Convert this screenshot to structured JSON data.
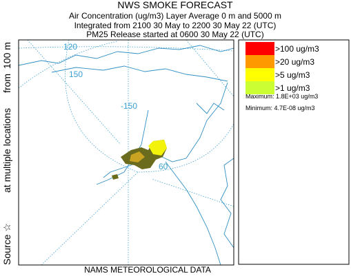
{
  "header": {
    "title": "NWS SMOKE FORECAST",
    "lines": [
      "Air Concentration (ug/m3) Layer Average    0 m and  5000 m",
      "Integrated from 2100 30 May to 2200 30 May 22 (UTC)",
      "PM25 Release started at 0600 30 May 22 (UTC)"
    ]
  },
  "side_label": [
    "Source ☆",
    "at multiple locations",
    "from",
    "100 m"
  ],
  "footer": "NAMS METEOROLOGICAL DATA",
  "map": {
    "labels": [
      "120",
      "150",
      "-150",
      "60"
    ]
  },
  "legend": {
    "entries": [
      {
        "label": ">100 ug/m3",
        "color": "#ff0000"
      },
      {
        "label": ">20 ug/m3",
        "color": "#ff9900"
      },
      {
        "label": ">5 ug/m3",
        "color": "#ffff00"
      },
      {
        "label": ">1 ug/m3",
        "color": "#ccff33"
      }
    ],
    "maximum": "Maximum: 1.8E+03 ug/m3",
    "minimum": "Minimum: 4.7E-08 ug/m3"
  }
}
